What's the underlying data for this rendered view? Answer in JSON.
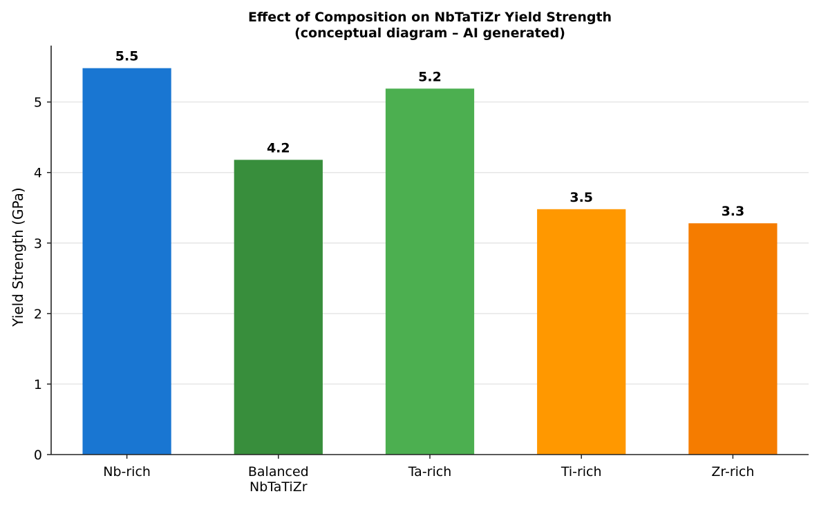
{
  "chart_data": {
    "type": "bar",
    "title_lines": [
      "Effect of Composition on NbTaTiZr Yield Strength",
      "(conceptual diagram – AI generated)"
    ],
    "xlabel": "",
    "ylabel": "Yield Strength (GPa)",
    "categories": [
      [
        "Nb-rich"
      ],
      [
        "Balanced",
        "NbTaTiZr"
      ],
      [
        "Ta-rich"
      ],
      [
        "Ti-rich"
      ],
      [
        "Zr-rich"
      ]
    ],
    "values": [
      5.48,
      4.18,
      5.19,
      3.48,
      3.28
    ],
    "value_labels": [
      "5.5",
      "4.2",
      "5.2",
      "3.5",
      "3.3"
    ],
    "colors": [
      "#1976d2",
      "#388e3c",
      "#4caf50",
      "#ff9800",
      "#f57c00"
    ],
    "ylim": [
      0,
      5.8
    ],
    "yticks": [
      0,
      1,
      2,
      3,
      4,
      5
    ],
    "grid": "y"
  }
}
